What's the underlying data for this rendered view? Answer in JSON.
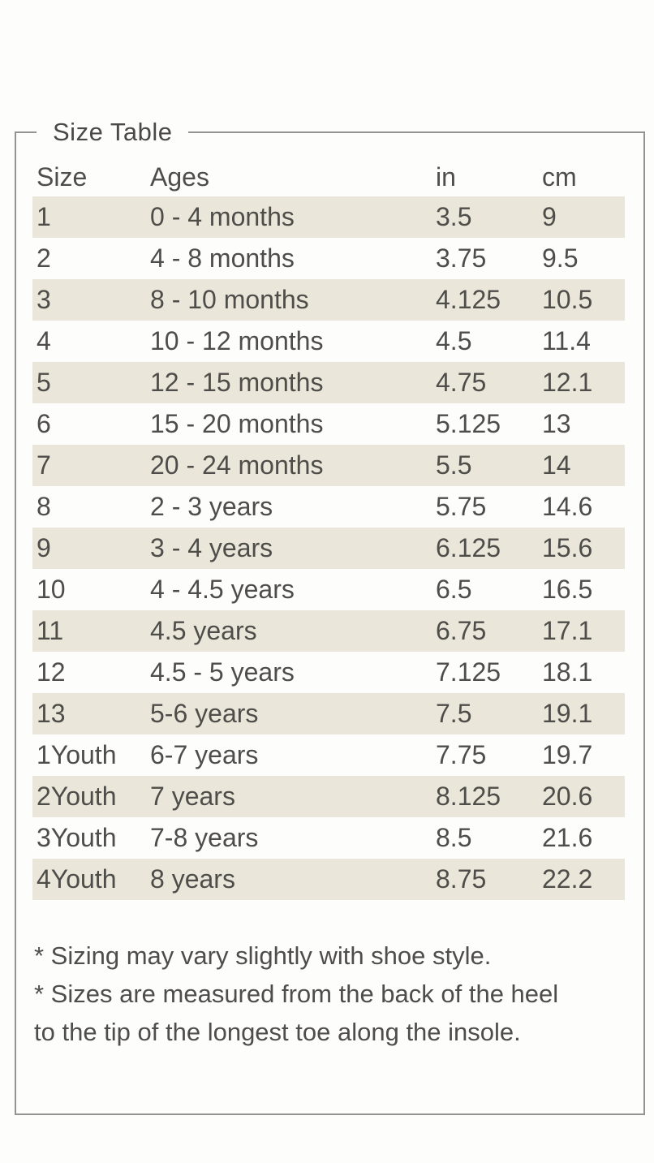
{
  "panel": {
    "title": "Size Table"
  },
  "table": {
    "headers": [
      "Size",
      "Ages",
      "in",
      "cm"
    ],
    "rows": [
      {
        "size": "1",
        "ages": "0 - 4 months",
        "in": "3.5",
        "cm": "9"
      },
      {
        "size": "2",
        "ages": "4 - 8 months",
        "in": "3.75",
        "cm": "9.5"
      },
      {
        "size": "3",
        "ages": "8 - 10 months",
        "in": "4.125",
        "cm": "10.5"
      },
      {
        "size": "4",
        "ages": "10 - 12 months",
        "in": "4.5",
        "cm": "11.4"
      },
      {
        "size": "5",
        "ages": "12 - 15 months",
        "in": "4.75",
        "cm": "12.1"
      },
      {
        "size": "6",
        "ages": "15 - 20 months",
        "in": "5.125",
        "cm": "13"
      },
      {
        "size": "7",
        "ages": "20 - 24 months",
        "in": "5.5",
        "cm": "14"
      },
      {
        "size": "8",
        "ages": "2 - 3 years",
        "in": "5.75",
        "cm": "14.6"
      },
      {
        "size": "9",
        "ages": "3 - 4 years",
        "in": "6.125",
        "cm": "15.6"
      },
      {
        "size": "10",
        "ages": "4 - 4.5 years",
        "in": "6.5",
        "cm": "16.5"
      },
      {
        "size": "11",
        "ages": "4.5 years",
        "in": "6.75",
        "cm": "17.1"
      },
      {
        "size": "12",
        "ages": "4.5 - 5 years",
        "in": "7.125",
        "cm": "18.1"
      },
      {
        "size": "13",
        "ages": "5-6 years",
        "in": "7.5",
        "cm": "19.1"
      },
      {
        "size": "1Youth",
        "ages": "6-7 years",
        "in": "7.75",
        "cm": "19.7"
      },
      {
        "size": "2Youth",
        "ages": "7 years",
        "in": "8.125",
        "cm": "20.6"
      },
      {
        "size": "3Youth",
        "ages": "7-8 years",
        "in": "8.5",
        "cm": "21.6"
      },
      {
        "size": "4Youth",
        "ages": "8 years",
        "in": "8.75",
        "cm": "22.2"
      }
    ]
  },
  "notes": {
    "lines": [
      "* Sizing may vary slightly with shoe style.",
      "* Sizes are measured from the back of the heel",
      "to the tip of the longest toe along the insole."
    ]
  },
  "colors": {
    "row_stripe": "#eae6d9",
    "panel_border": "#95938e",
    "text": "#4f4d4a",
    "background": "#fdfdfc"
  }
}
